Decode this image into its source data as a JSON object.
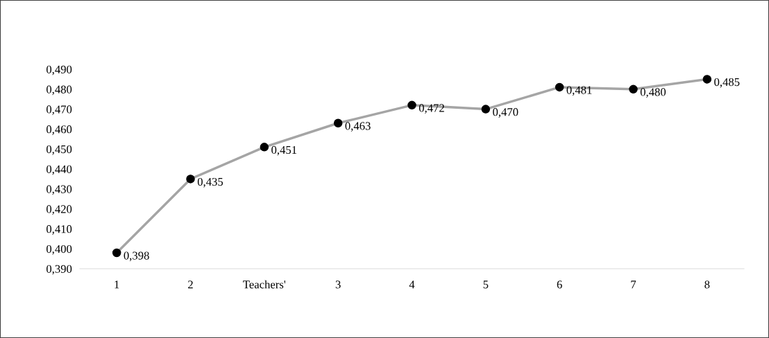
{
  "chart_data": {
    "type": "line",
    "categories": [
      "1",
      "2",
      "Teachers'",
      "3",
      "4",
      "5",
      "6",
      "7",
      "8"
    ],
    "series": [
      {
        "color": "#a5a5a5",
        "values": [
          0.398,
          0.435,
          0.451,
          0.463,
          0.472,
          0.47,
          0.481,
          0.48,
          0.485
        ],
        "value_labels": [
          "0,398",
          "0,435",
          "0,451",
          "0,463",
          "0,472",
          "0,470",
          "0,481",
          "0,480",
          "0,485"
        ]
      }
    ],
    "ylim": [
      0.39,
      0.49
    ],
    "yticks": [
      {
        "value": 0.39,
        "label": "0,390"
      },
      {
        "value": 0.4,
        "label": "0,400"
      },
      {
        "value": 0.41,
        "label": "0,410"
      },
      {
        "value": 0.42,
        "label": "0,420"
      },
      {
        "value": 0.43,
        "label": "0,430"
      },
      {
        "value": 0.44,
        "label": "0,440"
      },
      {
        "value": 0.45,
        "label": "0,450"
      },
      {
        "value": 0.46,
        "label": "0,460"
      },
      {
        "value": 0.47,
        "label": "0,470"
      },
      {
        "value": 0.48,
        "label": "0,480"
      },
      {
        "value": 0.49,
        "label": "0,490"
      }
    ],
    "marker": "circle",
    "line_style": "solid",
    "grid": false,
    "legend": false
  }
}
